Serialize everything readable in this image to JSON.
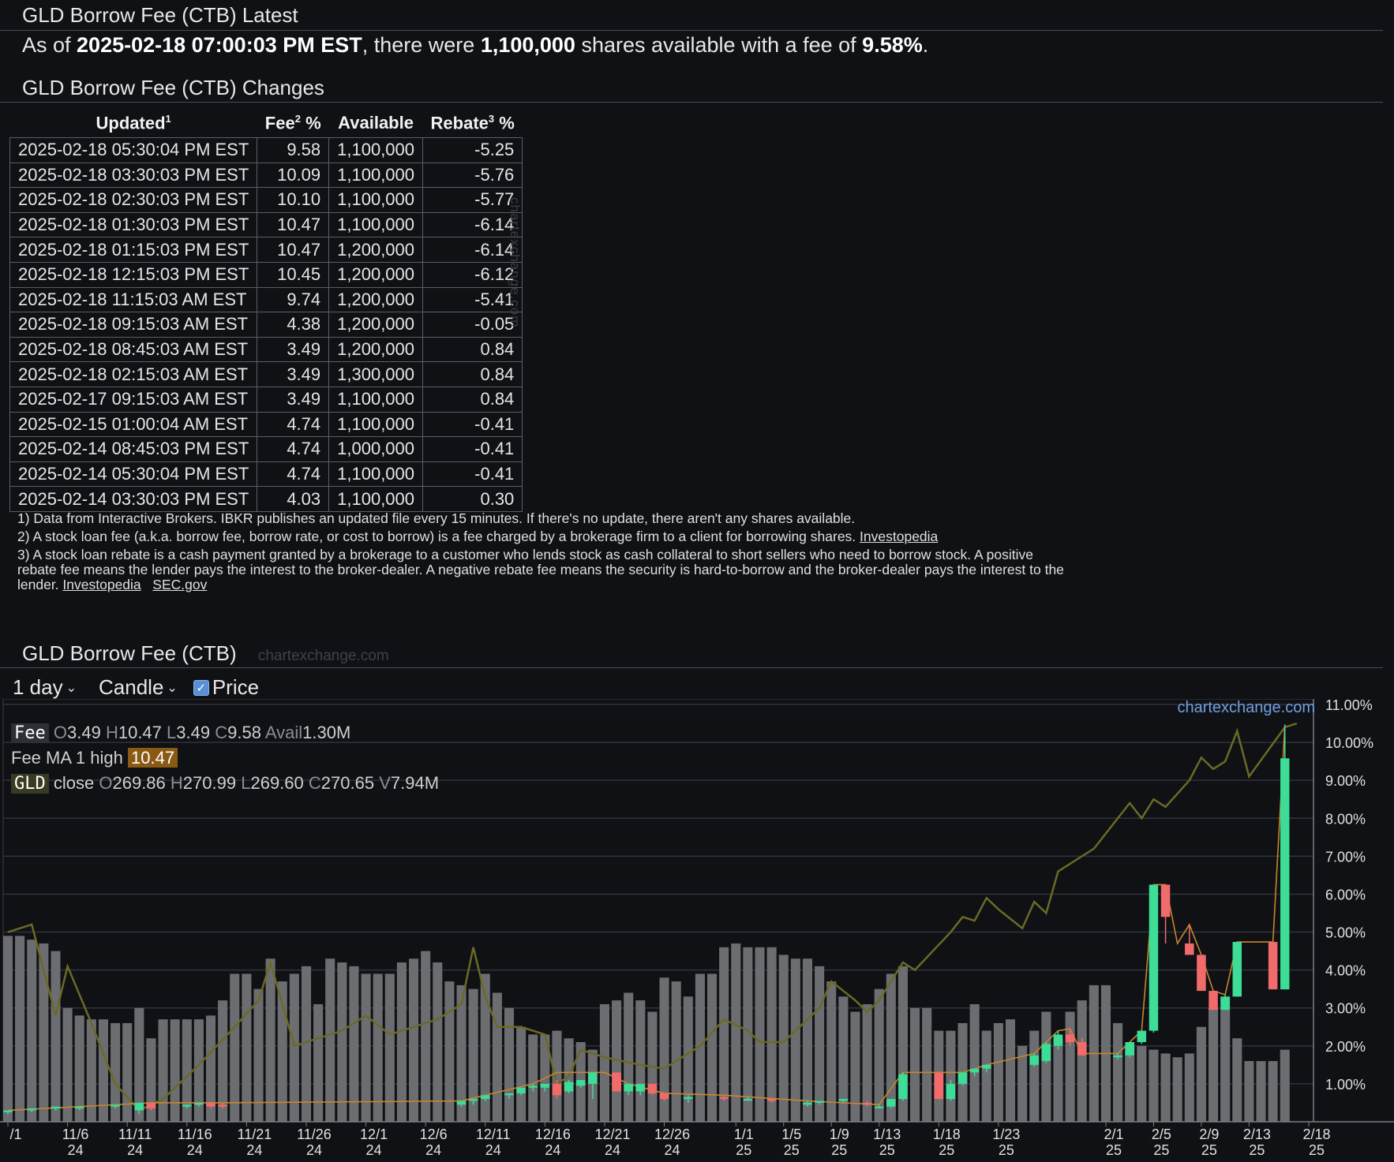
{
  "latest": {
    "title": "GLD Borrow Fee (CTB) Latest",
    "prefix": "As of ",
    "timestamp": "2025-02-18 07:00:03 PM EST",
    "middle": ", there were ",
    "shares": "1,100,000",
    "middle2": " shares available with a fee of ",
    "fee": "9.58%",
    "suffix": "."
  },
  "changes": {
    "title": "GLD Borrow Fee (CTB) Changes",
    "headers": [
      {
        "label": "Updated",
        "sup": "1"
      },
      {
        "label": "Fee",
        "sup": "2",
        "after": " %"
      },
      {
        "label": "Available",
        "sup": ""
      },
      {
        "label": "Rebate",
        "sup": "3",
        "after": " %"
      }
    ],
    "rows": [
      [
        "2025-02-18 05:30:04 PM EST",
        "9.58",
        "1,100,000",
        "-5.25"
      ],
      [
        "2025-02-18 03:30:03 PM EST",
        "10.09",
        "1,100,000",
        "-5.76"
      ],
      [
        "2025-02-18 02:30:03 PM EST",
        "10.10",
        "1,100,000",
        "-5.77"
      ],
      [
        "2025-02-18 01:30:03 PM EST",
        "10.47",
        "1,100,000",
        "-6.14"
      ],
      [
        "2025-02-18 01:15:03 PM EST",
        "10.47",
        "1,200,000",
        "-6.14"
      ],
      [
        "2025-02-18 12:15:03 PM EST",
        "10.45",
        "1,200,000",
        "-6.12"
      ],
      [
        "2025-02-18 11:15:03 AM EST",
        "9.74",
        "1,200,000",
        "-5.41"
      ],
      [
        "2025-02-18 09:15:03 AM EST",
        "4.38",
        "1,200,000",
        "-0.05"
      ],
      [
        "2025-02-18 08:45:03 AM EST",
        "3.49",
        "1,200,000",
        "0.84"
      ],
      [
        "2025-02-18 02:15:03 AM EST",
        "3.49",
        "1,300,000",
        "0.84"
      ],
      [
        "2025-02-17 09:15:03 AM EST",
        "3.49",
        "1,100,000",
        "0.84"
      ],
      [
        "2025-02-15 01:00:04 AM EST",
        "4.74",
        "1,100,000",
        "-0.41"
      ],
      [
        "2025-02-14 08:45:03 PM EST",
        "4.74",
        "1,000,000",
        "-0.41"
      ],
      [
        "2025-02-14 05:30:04 PM EST",
        "4.74",
        "1,100,000",
        "-0.41"
      ],
      [
        "2025-02-14 03:30:03 PM EST",
        "4.03",
        "1,100,000",
        "0.30"
      ]
    ],
    "watermark": "chartexchange.com"
  },
  "footnotes": {
    "note1": "1) Data from Interactive Brokers. IBKR publishes an updated file every 15 minutes. If there's no update, there aren't any shares available.",
    "note2": "2) A stock loan fee (a.k.a. borrow fee, borrow rate, or cost to borrow) is a fee charged by a brokerage firm to a client for borrowing shares.",
    "note2_link": "Investopedia",
    "note3": "3) A stock loan rebate is a cash payment granted by a brokerage to a customer who lends stock as cash collateral to short sellers who need to borrow stock. A positive rebate fee means the lender pays the interest to the broker-dealer. A negative rebate fee means the security is hard-to-borrow and the broker-dealer pays the interest to the lender.",
    "note3_link1": "Investopedia",
    "note3_link2": "SEC.gov"
  },
  "chart_section": {
    "title": "GLD Borrow Fee (CTB)",
    "watermark": "chartexchange.com",
    "interval": "1 day",
    "chart_type": "Candle",
    "price_label": "Price",
    "price_checked": true,
    "brand": "chartexchange.com",
    "legend": {
      "fee_tag": "Fee",
      "fee_o_k": "O",
      "fee_o": "3.49",
      "fee_h_k": "H",
      "fee_h": "10.47",
      "fee_l_k": "L",
      "fee_l": "3.49",
      "fee_c_k": "C",
      "fee_c": "9.58",
      "fee_avail_k": "Avail",
      "fee_avail": "1.30M",
      "ma_label": "Fee MA 1 high",
      "ma_value": "10.47",
      "gld_tag": "GLD",
      "gld_label": "close",
      "gld_o_k": "O",
      "gld_o": "269.86",
      "gld_h_k": "H",
      "gld_h": "270.99",
      "gld_l_k": "L",
      "gld_l": "269.60",
      "gld_c_k": "C",
      "gld_c": "270.65",
      "gld_v_k": "V",
      "gld_v": "7.94M"
    },
    "colors": {
      "up": "#3ddc97",
      "down": "#f26b6b",
      "ma": "#c8862a",
      "price": "#6b6a25",
      "volume": "#6c6d71",
      "grid": "#30333a"
    }
  },
  "chart_data": {
    "type": "candlestick",
    "y_axis": {
      "ticks": [
        "1.00%",
        "2.00%",
        "3.00%",
        "4.00%",
        "5.00%",
        "6.00%",
        "7.00%",
        "8.00%",
        "9.00%",
        "10.00%",
        "11.00%"
      ],
      "range": [
        0,
        11
      ]
    },
    "x_ticks": [
      {
        "top": "/1",
        "bottom": ""
      },
      {
        "top": "11/6",
        "bottom": "24"
      },
      {
        "top": "11/11",
        "bottom": "24"
      },
      {
        "top": "11/16",
        "bottom": "24"
      },
      {
        "top": "11/21",
        "bottom": "24"
      },
      {
        "top": "11/26",
        "bottom": "24"
      },
      {
        "top": "12/1",
        "bottom": "24"
      },
      {
        "top": "12/6",
        "bottom": "24"
      },
      {
        "top": "12/11",
        "bottom": "24"
      },
      {
        "top": "12/16",
        "bottom": "24"
      },
      {
        "top": "12/21",
        "bottom": "24"
      },
      {
        "top": "12/26",
        "bottom": "24"
      },
      {
        "top": "1/1",
        "bottom": "25"
      },
      {
        "top": "1/5",
        "bottom": "25"
      },
      {
        "top": "1/9",
        "bottom": "25"
      },
      {
        "top": "1/13",
        "bottom": "25"
      },
      {
        "top": "1/18",
        "bottom": "25"
      },
      {
        "top": "1/23",
        "bottom": "25"
      },
      {
        "top": "2/1",
        "bottom": "25"
      },
      {
        "top": "2/5",
        "bottom": "25"
      },
      {
        "top": "2/9",
        "bottom": "25"
      },
      {
        "top": "2/13",
        "bottom": "25"
      },
      {
        "top": "2/18",
        "bottom": "25"
      }
    ],
    "x_tick_days": [
      0,
      5,
      10,
      15,
      20,
      25,
      30,
      35,
      40,
      45,
      50,
      55,
      61,
      65,
      69,
      73,
      78,
      83,
      92,
      96,
      100,
      104,
      109
    ],
    "last_day": 109,
    "candles": [
      {
        "d": 0,
        "o": 0.25,
        "h": 0.3,
        "l": 0.2,
        "c": 0.3
      },
      {
        "d": 2,
        "o": 0.3,
        "h": 0.35,
        "l": 0.25,
        "c": 0.35
      },
      {
        "d": 4,
        "o": 0.35,
        "h": 0.4,
        "l": 0.3,
        "c": 0.4
      },
      {
        "d": 6,
        "o": 0.35,
        "h": 0.4,
        "l": 0.3,
        "c": 0.4
      },
      {
        "d": 9,
        "o": 0.4,
        "h": 0.45,
        "l": 0.35,
        "c": 0.45
      },
      {
        "d": 11,
        "o": 0.3,
        "h": 0.5,
        "l": 0.2,
        "c": 0.5
      },
      {
        "d": 12,
        "o": 0.5,
        "h": 0.5,
        "l": 0.3,
        "c": 0.35
      },
      {
        "d": 15,
        "o": 0.4,
        "h": 0.45,
        "l": 0.35,
        "c": 0.45
      },
      {
        "d": 16,
        "o": 0.45,
        "h": 0.5,
        "l": 0.4,
        "c": 0.5
      },
      {
        "d": 17,
        "o": 0.5,
        "h": 0.5,
        "l": 0.35,
        "c": 0.4
      },
      {
        "d": 18,
        "o": 0.45,
        "h": 0.5,
        "l": 0.35,
        "c": 0.4
      },
      {
        "d": 38,
        "o": 0.45,
        "h": 0.55,
        "l": 0.4,
        "c": 0.55
      },
      {
        "d": 39,
        "o": 0.55,
        "h": 0.6,
        "l": 0.45,
        "c": 0.6
      },
      {
        "d": 40,
        "o": 0.6,
        "h": 0.7,
        "l": 0.55,
        "c": 0.7
      },
      {
        "d": 42,
        "o": 0.7,
        "h": 0.75,
        "l": 0.6,
        "c": 0.75
      },
      {
        "d": 43,
        "o": 0.75,
        "h": 0.9,
        "l": 0.7,
        "c": 0.9
      },
      {
        "d": 44,
        "o": 0.9,
        "h": 1.0,
        "l": 0.8,
        "c": 0.95
      },
      {
        "d": 45,
        "o": 0.9,
        "h": 1.0,
        "l": 0.8,
        "c": 1.0
      },
      {
        "d": 46,
        "o": 1.0,
        "h": 1.1,
        "l": 0.6,
        "c": 0.7
      },
      {
        "d": 47,
        "o": 0.8,
        "h": 1.1,
        "l": 0.75,
        "c": 1.05
      },
      {
        "d": 48,
        "o": 0.95,
        "h": 1.1,
        "l": 0.9,
        "c": 1.1
      },
      {
        "d": 49,
        "o": 1.0,
        "h": 1.3,
        "l": 0.6,
        "c": 1.3
      },
      {
        "d": 51,
        "o": 1.3,
        "h": 1.3,
        "l": 0.8,
        "c": 0.8
      },
      {
        "d": 52,
        "o": 0.8,
        "h": 1.0,
        "l": 0.7,
        "c": 1.0
      },
      {
        "d": 53,
        "o": 0.8,
        "h": 1.0,
        "l": 0.7,
        "c": 1.0
      },
      {
        "d": 54,
        "o": 1.0,
        "h": 1.0,
        "l": 0.7,
        "c": 0.75
      },
      {
        "d": 55,
        "o": 0.75,
        "h": 0.75,
        "l": 0.55,
        "c": 0.6
      },
      {
        "d": 57,
        "o": 0.6,
        "h": 0.7,
        "l": 0.5,
        "c": 0.65
      },
      {
        "d": 60,
        "o": 0.65,
        "h": 0.7,
        "l": 0.55,
        "c": 0.6
      },
      {
        "d": 62,
        "o": 0.6,
        "h": 0.65,
        "l": 0.55,
        "c": 0.6
      },
      {
        "d": 64,
        "o": 0.6,
        "h": 0.62,
        "l": 0.5,
        "c": 0.55
      },
      {
        "d": 67,
        "o": 0.45,
        "h": 0.55,
        "l": 0.4,
        "c": 0.5
      },
      {
        "d": 68,
        "o": 0.5,
        "h": 0.55,
        "l": 0.45,
        "c": 0.55
      },
      {
        "d": 70,
        "o": 0.55,
        "h": 0.6,
        "l": 0.5,
        "c": 0.6
      },
      {
        "d": 72,
        "o": 0.5,
        "h": 0.55,
        "l": 0.4,
        "c": 0.45
      },
      {
        "d": 73,
        "o": 0.4,
        "h": 0.45,
        "l": 0.35,
        "c": 0.4
      },
      {
        "d": 74,
        "o": 0.4,
        "h": 0.6,
        "l": 0.35,
        "c": 0.6
      },
      {
        "d": 75,
        "o": 0.6,
        "h": 1.3,
        "l": 0.55,
        "c": 1.25
      },
      {
        "d": 78,
        "o": 1.3,
        "h": 1.3,
        "l": 0.6,
        "c": 0.6
      },
      {
        "d": 79,
        "o": 0.6,
        "h": 1.1,
        "l": 0.55,
        "c": 1.0
      },
      {
        "d": 80,
        "o": 1.0,
        "h": 1.3,
        "l": 0.95,
        "c": 1.3
      },
      {
        "d": 81,
        "o": 1.3,
        "h": 1.4,
        "l": 1.2,
        "c": 1.4
      },
      {
        "d": 82,
        "o": 1.4,
        "h": 1.5,
        "l": 1.3,
        "c": 1.5
      },
      {
        "d": 86,
        "o": 1.5,
        "h": 1.8,
        "l": 1.45,
        "c": 1.75
      },
      {
        "d": 87,
        "o": 1.6,
        "h": 2.1,
        "l": 1.55,
        "c": 2.05
      },
      {
        "d": 88,
        "o": 2.0,
        "h": 2.4,
        "l": 1.9,
        "c": 2.3
      },
      {
        "d": 89,
        "o": 2.3,
        "h": 2.45,
        "l": 2.0,
        "c": 2.1
      },
      {
        "d": 90,
        "o": 2.1,
        "h": 2.2,
        "l": 1.75,
        "c": 1.75
      },
      {
        "d": 93,
        "o": 1.7,
        "h": 1.8,
        "l": 1.65,
        "c": 1.75
      },
      {
        "d": 94,
        "o": 1.75,
        "h": 2.1,
        "l": 1.7,
        "c": 2.1
      },
      {
        "d": 95,
        "o": 2.1,
        "h": 2.4,
        "l": 2.05,
        "c": 2.4
      },
      {
        "d": 96,
        "o": 2.4,
        "h": 6.25,
        "l": 2.35,
        "c": 6.25
      },
      {
        "d": 97,
        "o": 6.25,
        "h": 6.25,
        "l": 4.7,
        "c": 5.4
      },
      {
        "d": 99,
        "o": 4.7,
        "h": 5.2,
        "l": 4.4,
        "c": 4.4
      },
      {
        "d": 100,
        "o": 4.4,
        "h": 4.4,
        "l": 3.45,
        "c": 3.45
      },
      {
        "d": 101,
        "o": 3.45,
        "h": 3.45,
        "l": 2.95,
        "c": 2.95
      },
      {
        "d": 102,
        "o": 2.95,
        "h": 3.35,
        "l": 2.95,
        "c": 3.3
      },
      {
        "d": 103,
        "o": 3.3,
        "h": 4.74,
        "l": 3.3,
        "c": 4.74
      },
      {
        "d": 106,
        "o": 4.74,
        "h": 4.74,
        "l": 3.49,
        "c": 3.49
      },
      {
        "d": 107,
        "o": 3.49,
        "h": 10.47,
        "l": 3.49,
        "c": 9.58
      }
    ],
    "ma_high": [
      {
        "d": 0,
        "v": 0.3
      },
      {
        "d": 12,
        "v": 0.5
      },
      {
        "d": 18,
        "v": 0.5
      },
      {
        "d": 38,
        "v": 0.55
      },
      {
        "d": 44,
        "v": 1.0
      },
      {
        "d": 46,
        "v": 1.3
      },
      {
        "d": 50,
        "v": 1.3
      },
      {
        "d": 52,
        "v": 1.0
      },
      {
        "d": 55,
        "v": 0.75
      },
      {
        "d": 60,
        "v": 0.7
      },
      {
        "d": 67,
        "v": 0.55
      },
      {
        "d": 73,
        "v": 0.45
      },
      {
        "d": 75,
        "v": 1.3
      },
      {
        "d": 78,
        "v": 1.3
      },
      {
        "d": 80,
        "v": 1.3
      },
      {
        "d": 82,
        "v": 1.5
      },
      {
        "d": 86,
        "v": 1.8
      },
      {
        "d": 88,
        "v": 2.4
      },
      {
        "d": 89,
        "v": 2.45
      },
      {
        "d": 90,
        "v": 1.8
      },
      {
        "d": 93,
        "v": 1.8
      },
      {
        "d": 95,
        "v": 2.4
      },
      {
        "d": 96,
        "v": 6.25
      },
      {
        "d": 97,
        "v": 6.25
      },
      {
        "d": 98,
        "v": 4.7
      },
      {
        "d": 99,
        "v": 5.2
      },
      {
        "d": 100,
        "v": 4.4
      },
      {
        "d": 101,
        "v": 3.45
      },
      {
        "d": 102,
        "v": 3.35
      },
      {
        "d": 103,
        "v": 4.74
      },
      {
        "d": 106,
        "v": 4.74
      },
      {
        "d": 107,
        "v": 10.47
      }
    ],
    "price_line": [
      {
        "d": 0,
        "v": 5.0
      },
      {
        "d": 2,
        "v": 5.2
      },
      {
        "d": 4,
        "v": 2.8
      },
      {
        "d": 5,
        "v": 4.1
      },
      {
        "d": 7,
        "v": 2.6
      },
      {
        "d": 9,
        "v": 1.0
      },
      {
        "d": 11,
        "v": 0.3
      },
      {
        "d": 13,
        "v": 0.6
      },
      {
        "d": 16,
        "v": 1.5
      },
      {
        "d": 19,
        "v": 2.5
      },
      {
        "d": 21,
        "v": 3.2
      },
      {
        "d": 22,
        "v": 4.2
      },
      {
        "d": 23,
        "v": 3.1
      },
      {
        "d": 24,
        "v": 2.0
      },
      {
        "d": 26,
        "v": 2.2
      },
      {
        "d": 28,
        "v": 2.4
      },
      {
        "d": 30,
        "v": 2.8
      },
      {
        "d": 32,
        "v": 2.3
      },
      {
        "d": 34,
        "v": 2.5
      },
      {
        "d": 36,
        "v": 2.7
      },
      {
        "d": 38,
        "v": 3.1
      },
      {
        "d": 39,
        "v": 4.6
      },
      {
        "d": 40,
        "v": 3.3
      },
      {
        "d": 41,
        "v": 2.5
      },
      {
        "d": 43,
        "v": 2.5
      },
      {
        "d": 45,
        "v": 2.3
      },
      {
        "d": 46,
        "v": 1.0
      },
      {
        "d": 47,
        "v": 1.2
      },
      {
        "d": 48,
        "v": 1.9
      },
      {
        "d": 50,
        "v": 1.7
      },
      {
        "d": 53,
        "v": 1.5
      },
      {
        "d": 55,
        "v": 1.4
      },
      {
        "d": 58,
        "v": 2.0
      },
      {
        "d": 60,
        "v": 2.7
      },
      {
        "d": 62,
        "v": 2.4
      },
      {
        "d": 63,
        "v": 2.1
      },
      {
        "d": 65,
        "v": 2.1
      },
      {
        "d": 68,
        "v": 3.0
      },
      {
        "d": 69,
        "v": 3.7
      },
      {
        "d": 71,
        "v": 3.2
      },
      {
        "d": 72,
        "v": 2.9
      },
      {
        "d": 73,
        "v": 3.2
      },
      {
        "d": 75,
        "v": 4.2
      },
      {
        "d": 76,
        "v": 4.0
      },
      {
        "d": 79,
        "v": 5.0
      },
      {
        "d": 80,
        "v": 5.4
      },
      {
        "d": 81,
        "v": 5.3
      },
      {
        "d": 82,
        "v": 5.9
      },
      {
        "d": 83,
        "v": 5.6
      },
      {
        "d": 85,
        "v": 5.1
      },
      {
        "d": 86,
        "v": 5.8
      },
      {
        "d": 87,
        "v": 5.5
      },
      {
        "d": 88,
        "v": 6.6
      },
      {
        "d": 91,
        "v": 7.2
      },
      {
        "d": 92,
        "v": 7.6
      },
      {
        "d": 94,
        "v": 8.4
      },
      {
        "d": 95,
        "v": 8.0
      },
      {
        "d": 96,
        "v": 8.5
      },
      {
        "d": 97,
        "v": 8.3
      },
      {
        "d": 99,
        "v": 9.0
      },
      {
        "d": 100,
        "v": 9.6
      },
      {
        "d": 101,
        "v": 9.3
      },
      {
        "d": 102,
        "v": 9.5
      },
      {
        "d": 103,
        "v": 10.3
      },
      {
        "d": 104,
        "v": 9.1
      },
      {
        "d": 107,
        "v": 10.4
      },
      {
        "d": 108,
        "v": 10.5
      }
    ],
    "availability": [
      4.9,
      4.9,
      4.8,
      4.7,
      4.5,
      3.0,
      2.8,
      2.7,
      2.7,
      2.6,
      2.6,
      3.0,
      2.2,
      2.7,
      2.7,
      2.7,
      2.7,
      2.8,
      3.2,
      3.9,
      3.9,
      3.5,
      4.3,
      3.7,
      3.9,
      4.1,
      3.1,
      4.3,
      4.2,
      4.1,
      3.9,
      3.9,
      3.9,
      4.2,
      4.3,
      4.5,
      4.2,
      3.7,
      3.6,
      3.5,
      3.9,
      3.4,
      3.0,
      2.5,
      2.3,
      2.3,
      2.4,
      2.2,
      2.1,
      1.9,
      3.1,
      3.2,
      3.4,
      3.2,
      2.9,
      3.8,
      3.7,
      3.3,
      3.9,
      3.9,
      4.6,
      4.7,
      4.6,
      4.6,
      4.6,
      4.4,
      4.3,
      4.3,
      4.1,
      3.7,
      3.3,
      2.9,
      3.1,
      3.5,
      3.9,
      4.1,
      3.0,
      3.0,
      2.4,
      2.4,
      2.6,
      3.1,
      2.4,
      2.6,
      2.7,
      2.0,
      2.4,
      2.9,
      2.2,
      2.9,
      3.2,
      3.6,
      3.6,
      2.6,
      2.0,
      2.0,
      1.9,
      1.8,
      1.7,
      1.8,
      2.5,
      3.0,
      3.3,
      2.2,
      1.6,
      1.6,
      1.6,
      1.9
    ],
    "availability_unit": "percent-scale bar heights (volume overlay)"
  }
}
